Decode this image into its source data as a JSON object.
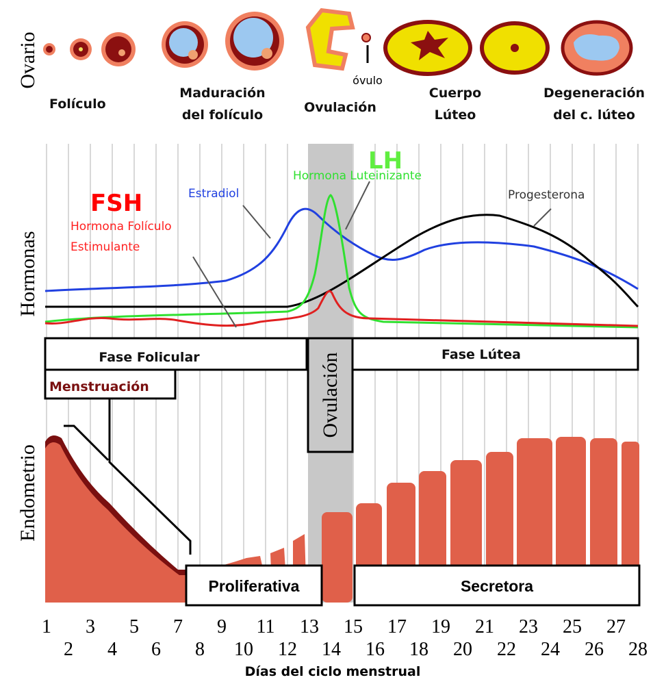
{
  "side_labels": [
    "Ovario",
    "Hormonas",
    "Endometrio"
  ],
  "ovary_stages": [
    {
      "lines": [
        "Folículo"
      ]
    },
    {
      "lines": [
        "Maduración",
        "del folículo"
      ]
    },
    {
      "lines": [
        "Ovulación"
      ]
    },
    {
      "lines": [
        "Cuerpo",
        "Lúteo"
      ]
    },
    {
      "lines": [
        "Degeneración",
        "del c. lúteo"
      ]
    }
  ],
  "ovum_label": "óvulo",
  "hormones": {
    "fsh": {
      "abbr": "FSH",
      "lines": [
        "Hormona Folículo",
        "Estimulante"
      ]
    },
    "estradiol": {
      "name": "Estradiol"
    },
    "lh": {
      "abbr": "LH",
      "name": "Hormona Luteinizante"
    },
    "progesterone": {
      "name": "Progesterona"
    }
  },
  "phases": {
    "follicular": "Fase Folicular",
    "ovulation": "Ovulación",
    "luteal": "Fase Lútea"
  },
  "menstruation": "Menstruación",
  "endometrium_phases": {
    "proliferative": "Proliferativa",
    "secretory": "Secretora"
  },
  "days": [
    1,
    2,
    3,
    4,
    5,
    6,
    7,
    8,
    9,
    10,
    11,
    12,
    13,
    14,
    15,
    16,
    17,
    18,
    19,
    20,
    21,
    22,
    23,
    24,
    25,
    26,
    27,
    28
  ],
  "x_axis_title": "Días del ciclo menstrual"
}
